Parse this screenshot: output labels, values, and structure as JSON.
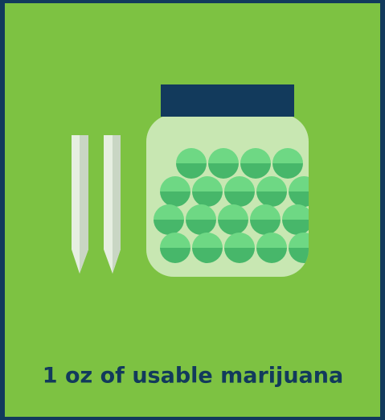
{
  "caption": "1 oz of usable marijuana"
}
